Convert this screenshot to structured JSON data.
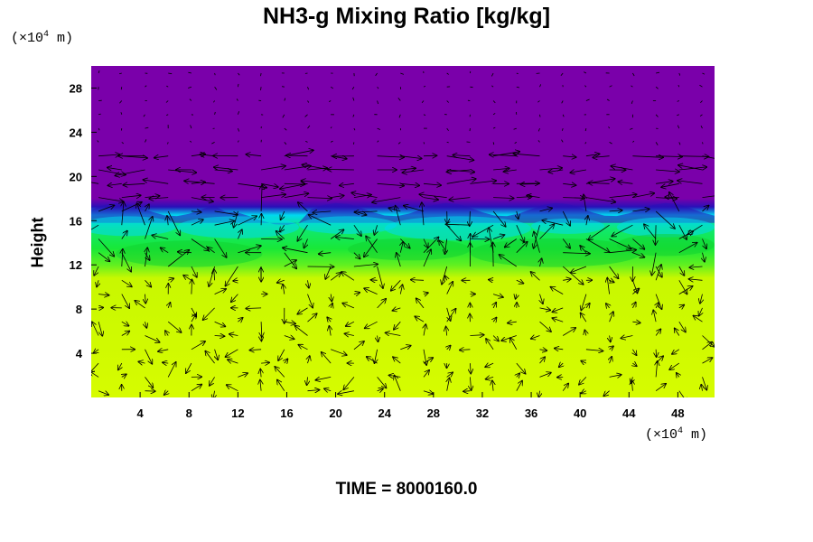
{
  "chart_data": {
    "type": "heatmap",
    "title": "NH3-g Mixing Ratio [kg/kg]",
    "ylabel": "Height",
    "y_unit": {
      "prefix": "(×10",
      "exp": "4",
      "suffix": " m)"
    },
    "x_unit": {
      "prefix": "(×10",
      "exp": "4",
      "suffix": " m)"
    },
    "xlim": [
      0,
      51
    ],
    "ylim": [
      0,
      30
    ],
    "x_ticks": [
      4,
      8,
      12,
      16,
      20,
      24,
      28,
      32,
      36,
      40,
      44,
      48
    ],
    "y_ticks": [
      4,
      8,
      12,
      16,
      20,
      24,
      28
    ],
    "time_label": "TIME = 8000160.0",
    "colors": {
      "upper": "#7a00aa",
      "boundary": "#2a10b8",
      "cyan": "#00d8f0",
      "green": "#18e838",
      "yellowgreen": "#c8f800",
      "lower": "#d6fc00"
    },
    "layers": [
      {
        "name": "upper",
        "from": 17,
        "to": 30
      },
      {
        "name": "transition-cyan",
        "from": 15,
        "to": 17
      },
      {
        "name": "green",
        "from": 12,
        "to": 15.5
      },
      {
        "name": "yellow-green",
        "from": 0,
        "to": 12
      }
    ],
    "overlay": "wind vectors"
  }
}
